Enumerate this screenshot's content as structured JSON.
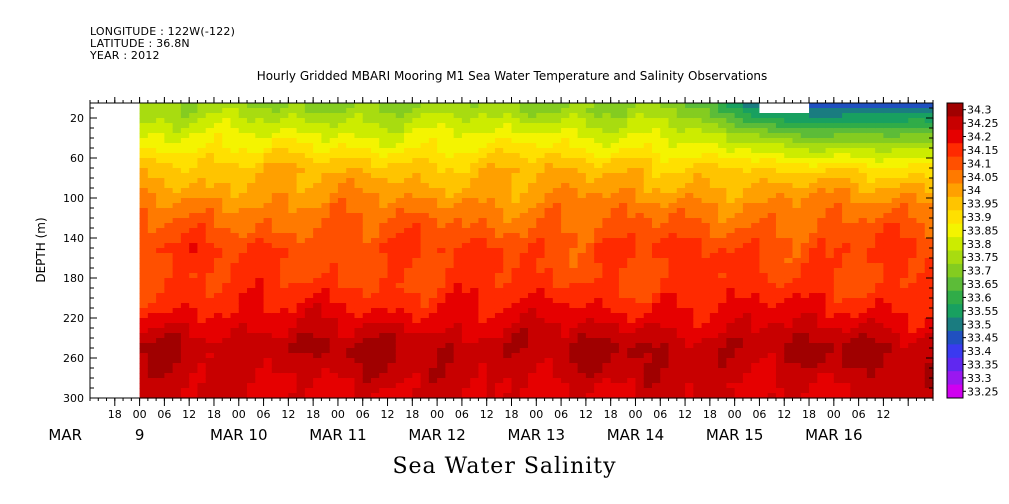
{
  "header": {
    "longitude": "LONGITUDE : 122W(-122)",
    "latitude": "LATITUDE : 36.8N",
    "year": "YEAR : 2012"
  },
  "chart_data": {
    "type": "heatmap",
    "title": "Hourly Gridded MBARI Mooring M1 Sea Water Temperature and Salinity Observations",
    "xlabel": "Sea Water Salinity",
    "ylabel": "DEPTH (m)",
    "x_range_hours": [
      "MAR 8 12:00",
      "MAR 16 24:00"
    ],
    "data_start": "MAR 9 00:00",
    "y_range": [
      300,
      5
    ],
    "y_ticks": [
      20,
      60,
      100,
      140,
      180,
      220,
      260,
      300
    ],
    "x_tick_hours": [
      "18",
      "00",
      "06",
      "12",
      "18",
      "00",
      "06",
      "12",
      "18",
      "00",
      "06",
      "12",
      "18",
      "00",
      "06",
      "12",
      "18",
      "00",
      "06",
      "12",
      "18",
      "00",
      "06",
      "12",
      "18",
      "00",
      "06",
      "12",
      "18",
      "00",
      "06",
      "12"
    ],
    "x_day_labels": [
      {
        "label": "MAR",
        "hour": -18
      },
      {
        "label": "9",
        "hour": 0
      },
      {
        "label": "MAR 10",
        "hour": 24
      },
      {
        "label": "MAR 11",
        "hour": 48
      },
      {
        "label": "MAR 12",
        "hour": 72
      },
      {
        "label": "MAR 13",
        "hour": 96
      },
      {
        "label": "MAR 14",
        "hour": 120
      },
      {
        "label": "MAR 15",
        "hour": 144
      },
      {
        "label": "MAR 16",
        "hour": 168
      }
    ],
    "colorbar": {
      "levels": [
        "34.3",
        "34.25",
        "34.2",
        "34.15",
        "34.1",
        "34.05",
        "34",
        "33.95",
        "33.9",
        "33.85",
        "33.8",
        "33.75",
        "33.7",
        "33.65",
        "33.6",
        "33.55",
        "33.5",
        "33.45",
        "33.4",
        "33.35",
        "33.3",
        "33.25"
      ],
      "colors": [
        "#a00000",
        "#c80000",
        "#e60000",
        "#ff2a00",
        "#ff5000",
        "#ff7a00",
        "#ffa000",
        "#ffc400",
        "#ffe000",
        "#f4f400",
        "#ccec00",
        "#a8dc10",
        "#84cc20",
        "#5cbc38",
        "#30ac48",
        "#18a060",
        "#1a7c80",
        "#2050c0",
        "#3a3af0",
        "#6028f0",
        "#9a18f0",
        "#d000f0"
      ]
    },
    "profile": [
      {
        "depth": 10,
        "value": 33.7
      },
      {
        "depth": 30,
        "value": 33.78
      },
      {
        "depth": 50,
        "value": 33.85
      },
      {
        "depth": 70,
        "value": 33.93
      },
      {
        "depth": 90,
        "value": 33.97
      },
      {
        "depth": 110,
        "value": 34.02
      },
      {
        "depth": 130,
        "value": 34.06
      },
      {
        "depth": 150,
        "value": 34.1
      },
      {
        "depth": 180,
        "value": 34.1
      },
      {
        "depth": 210,
        "value": 34.15
      },
      {
        "depth": 230,
        "value": 34.2
      },
      {
        "depth": 250,
        "value": 34.25
      },
      {
        "depth": 270,
        "value": 34.23
      },
      {
        "depth": 290,
        "value": 34.2
      }
    ],
    "fresher_surface_event": {
      "start": "MAR 14 06:00",
      "end": "MAR 16 24:00",
      "min_value": 33.4
    },
    "missing_block": {
      "start": "MAR 15 06:00",
      "end": "MAR 15 18:00",
      "depth": [
        5,
        15
      ]
    }
  }
}
